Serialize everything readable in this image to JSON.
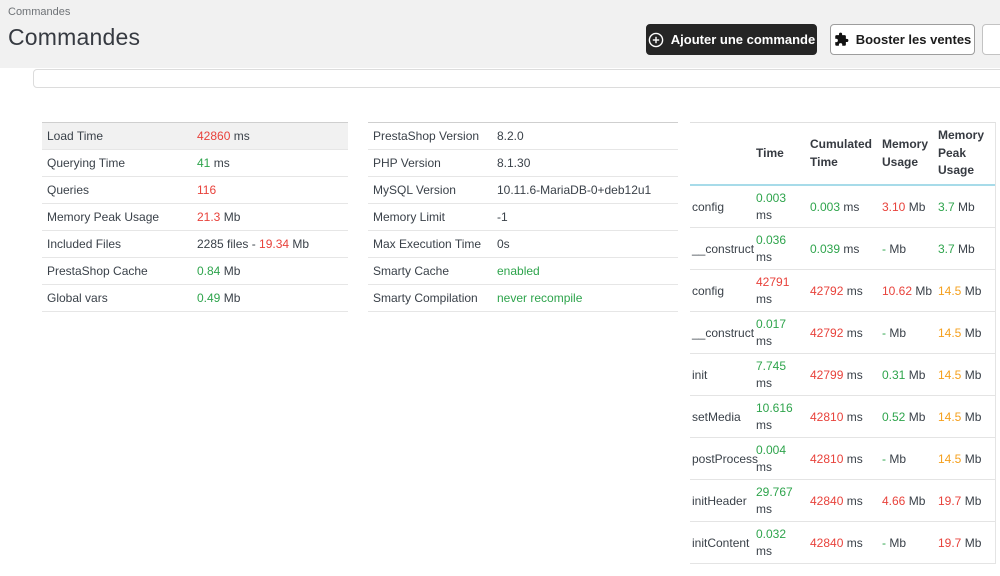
{
  "page": {
    "breadcrumb": "Commandes",
    "title": "Commandes"
  },
  "header_buttons": {
    "add_order_label": "Ajouter une commande",
    "boost_sales_label": "Booster les ventes"
  },
  "colors": {
    "header_bg": "#f1f1f1",
    "danger": "#e8423b",
    "success": "#2ea44c",
    "warning": "#f5a01d",
    "text": "#3a4149",
    "profiling_header_border": "#a7dbe9",
    "dark_button_bg": "#252525"
  },
  "debug_summary": {
    "rows": [
      {
        "label": "Load Time",
        "highlight": true,
        "value": [
          [
            "42860",
            "red"
          ],
          [
            " ms",
            "plain"
          ]
        ]
      },
      {
        "label": "Querying Time",
        "highlight": false,
        "value": [
          [
            "41",
            "green"
          ],
          [
            " ms",
            "plain"
          ]
        ]
      },
      {
        "label": "Queries",
        "highlight": false,
        "value": [
          [
            "116",
            "red"
          ]
        ]
      },
      {
        "label": "Memory Peak Usage",
        "highlight": false,
        "value": [
          [
            "21.3",
            "red"
          ],
          [
            " Mb",
            "plain"
          ]
        ]
      },
      {
        "label": "Included Files",
        "highlight": false,
        "value": [
          [
            "2285 files - ",
            "plain"
          ],
          [
            "19.34",
            "red"
          ],
          [
            " Mb",
            "plain"
          ]
        ]
      },
      {
        "label": "PrestaShop Cache",
        "highlight": false,
        "value": [
          [
            "0.84",
            "green"
          ],
          [
            " Mb",
            "plain"
          ]
        ]
      },
      {
        "label": "Global vars",
        "highlight": false,
        "value": [
          [
            "0.49",
            "green"
          ],
          [
            " Mb",
            "plain"
          ]
        ]
      }
    ]
  },
  "environment": {
    "rows": [
      {
        "label": "PrestaShop Version",
        "highlight": false,
        "value": [
          [
            "8.2.0",
            "plain"
          ]
        ]
      },
      {
        "label": "PHP Version",
        "highlight": false,
        "value": [
          [
            "8.1.30",
            "plain"
          ]
        ]
      },
      {
        "label": "MySQL Version",
        "highlight": false,
        "value": [
          [
            "10.11.6-MariaDB-0+deb12u1",
            "plain"
          ]
        ]
      },
      {
        "label": "Memory Limit",
        "highlight": false,
        "value": [
          [
            "-1",
            "plain"
          ]
        ]
      },
      {
        "label": "Max Execution Time",
        "highlight": false,
        "value": [
          [
            "0s",
            "plain"
          ]
        ]
      },
      {
        "label": "Smarty Cache",
        "highlight": false,
        "value": [
          [
            "enabled",
            "green"
          ]
        ]
      },
      {
        "label": "Smarty Compilation",
        "highlight": false,
        "value": [
          [
            "never recompile",
            "green"
          ]
        ]
      }
    ]
  },
  "profiling": {
    "columns": [
      "",
      "Time",
      "Cumulated Time",
      "Memory Usage",
      "Memory Peak Usage"
    ],
    "rows": [
      {
        "name": "config",
        "time": [
          [
            "0.003",
            "green"
          ],
          [
            "ms",
            "plain"
          ]
        ],
        "cumulated": [
          [
            "0.003",
            "green"
          ],
          [
            " ms",
            "plain"
          ]
        ],
        "memory": [
          [
            "3.10",
            "red"
          ],
          [
            " Mb",
            "plain"
          ]
        ],
        "peak": [
          [
            "3.7",
            "green"
          ],
          [
            " Mb",
            "plain"
          ]
        ]
      },
      {
        "name": "__construct",
        "time": [
          [
            "0.036",
            "green"
          ],
          [
            "ms",
            "plain"
          ]
        ],
        "cumulated": [
          [
            "0.039",
            "green"
          ],
          [
            " ms",
            "plain"
          ]
        ],
        "memory": [
          [
            "-",
            "green"
          ],
          [
            " Mb",
            "plain"
          ]
        ],
        "peak": [
          [
            "3.7",
            "green"
          ],
          [
            " Mb",
            "plain"
          ]
        ]
      },
      {
        "name": "config",
        "time": [
          [
            "42791",
            "red"
          ],
          [
            "ms",
            "plain"
          ]
        ],
        "cumulated": [
          [
            "42792",
            "red"
          ],
          [
            " ms",
            "plain"
          ]
        ],
        "memory": [
          [
            "10.62",
            "red"
          ],
          [
            " Mb",
            "plain"
          ]
        ],
        "peak": [
          [
            "14.5",
            "orange"
          ],
          [
            " Mb",
            "plain"
          ]
        ]
      },
      {
        "name": "__construct",
        "time": [
          [
            "0.017",
            "green"
          ],
          [
            "ms",
            "plain"
          ]
        ],
        "cumulated": [
          [
            "42792",
            "red"
          ],
          [
            " ms",
            "plain"
          ]
        ],
        "memory": [
          [
            "-",
            "green"
          ],
          [
            " Mb",
            "plain"
          ]
        ],
        "peak": [
          [
            "14.5",
            "orange"
          ],
          [
            " Mb",
            "plain"
          ]
        ]
      },
      {
        "name": "init",
        "time": [
          [
            "7.745",
            "green"
          ],
          [
            "ms",
            "plain"
          ]
        ],
        "cumulated": [
          [
            "42799",
            "red"
          ],
          [
            " ms",
            "plain"
          ]
        ],
        "memory": [
          [
            "0.31",
            "green"
          ],
          [
            " Mb",
            "plain"
          ]
        ],
        "peak": [
          [
            "14.5",
            "orange"
          ],
          [
            " Mb",
            "plain"
          ]
        ]
      },
      {
        "name": "setMedia",
        "time": [
          [
            "10.616",
            "green"
          ],
          [
            "ms",
            "plain"
          ]
        ],
        "cumulated": [
          [
            "42810",
            "red"
          ],
          [
            " ms",
            "plain"
          ]
        ],
        "memory": [
          [
            "0.52",
            "green"
          ],
          [
            " Mb",
            "plain"
          ]
        ],
        "peak": [
          [
            "14.5",
            "orange"
          ],
          [
            " Mb",
            "plain"
          ]
        ]
      },
      {
        "name": "postProcess",
        "time": [
          [
            "0.004",
            "green"
          ],
          [
            "ms",
            "plain"
          ]
        ],
        "cumulated": [
          [
            "42810",
            "red"
          ],
          [
            " ms",
            "plain"
          ]
        ],
        "memory": [
          [
            "-",
            "green"
          ],
          [
            " Mb",
            "plain"
          ]
        ],
        "peak": [
          [
            "14.5",
            "orange"
          ],
          [
            " Mb",
            "plain"
          ]
        ]
      },
      {
        "name": "initHeader",
        "time": [
          [
            "29.767",
            "green"
          ],
          [
            "ms",
            "plain"
          ]
        ],
        "cumulated": [
          [
            "42840",
            "red"
          ],
          [
            " ms",
            "plain"
          ]
        ],
        "memory": [
          [
            "4.66",
            "red"
          ],
          [
            " Mb",
            "plain"
          ]
        ],
        "peak": [
          [
            "19.7",
            "red"
          ],
          [
            " Mb",
            "plain"
          ]
        ]
      },
      {
        "name": "initContent",
        "time": [
          [
            "0.032",
            "green"
          ],
          [
            "ms",
            "plain"
          ]
        ],
        "cumulated": [
          [
            "42840",
            "red"
          ],
          [
            " ms",
            "plain"
          ]
        ],
        "memory": [
          [
            "-",
            "green"
          ],
          [
            " Mb",
            "plain"
          ]
        ],
        "peak": [
          [
            "19.7",
            "red"
          ],
          [
            " Mb",
            "plain"
          ]
        ]
      }
    ]
  }
}
